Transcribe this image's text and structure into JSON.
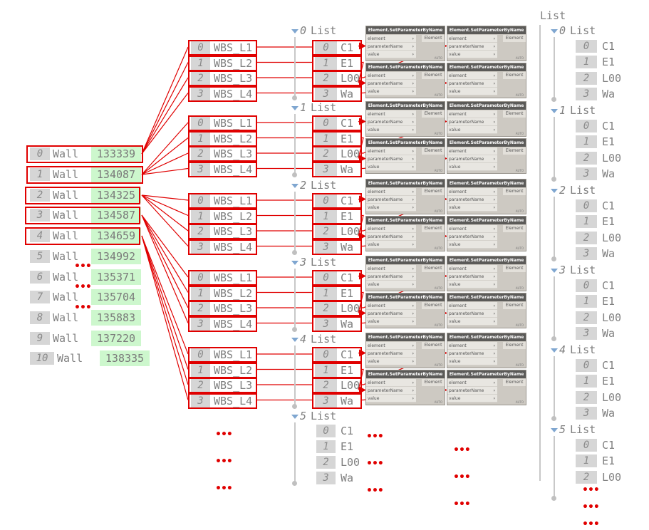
{
  "left_list": {
    "items": [
      {
        "index": "0",
        "type": "Wall",
        "id": "133339"
      },
      {
        "index": "1",
        "type": "Wall",
        "id": "134087"
      },
      {
        "index": "2",
        "type": "Wall",
        "id": "134325"
      },
      {
        "index": "3",
        "type": "Wall",
        "id": "134587"
      },
      {
        "index": "4",
        "type": "Wall",
        "id": "134659"
      },
      {
        "index": "5",
        "type": "Wall",
        "id": "134992"
      },
      {
        "index": "6",
        "type": "Wall",
        "id": "135371"
      },
      {
        "index": "7",
        "type": "Wall",
        "id": "135704"
      },
      {
        "index": "8",
        "type": "Wall",
        "id": "135883"
      },
      {
        "index": "9",
        "type": "Wall",
        "id": "137220"
      },
      {
        "index": "10",
        "type": "Wall",
        "id": "138335"
      }
    ],
    "highlighted_count": 5
  },
  "wbs_groups": {
    "labels": [
      {
        "index": "0",
        "text": "WBS_L1"
      },
      {
        "index": "1",
        "text": "WBS_L2"
      },
      {
        "index": "2",
        "text": "WBS_L3"
      },
      {
        "index": "3",
        "text": "WBS_L4"
      }
    ],
    "group_count": 5
  },
  "middle_list": {
    "header_word": "List",
    "groups": [
      "0",
      "1",
      "2",
      "3",
      "4",
      "5"
    ],
    "items": [
      {
        "index": "0",
        "text": "C1"
      },
      {
        "index": "1",
        "text": "E1"
      },
      {
        "index": "2",
        "text": "L00"
      },
      {
        "index": "3",
        "text": "Wa"
      }
    ]
  },
  "node": {
    "title": "Element.SetParameterByName",
    "inputs": [
      "element",
      "parameterName",
      "value"
    ],
    "output": "Element",
    "footer": "AUTO"
  },
  "right_list": {
    "title": "List",
    "header_word": "List",
    "groups": [
      "0",
      "1",
      "2",
      "3",
      "4",
      "5"
    ],
    "items": [
      {
        "index": "0",
        "text": "C1"
      },
      {
        "index": "1",
        "text": "E1"
      },
      {
        "index": "2",
        "text": "L00"
      },
      {
        "index": "3",
        "text": "Wa"
      }
    ]
  },
  "ellipsis": "•••",
  "colors": {
    "highlight": "#e00000",
    "id_bg": "#cdf7cd",
    "index_bg": "#d6d6d6",
    "node_header": "#5b5a58",
    "expander": "#7fa6d0"
  }
}
